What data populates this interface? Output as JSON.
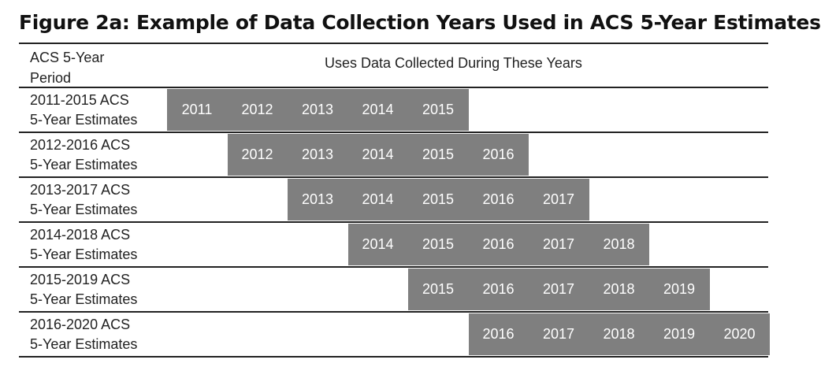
{
  "title": "Figure 2a: Example of Data Collection Years Used in ACS 5-Year Estimates",
  "header": {
    "period_line1": "ACS 5-Year",
    "period_line2": "Period",
    "uses": "Uses Data Collected During These Years"
  },
  "columns": [
    "2011",
    "2012",
    "2013",
    "2014",
    "2015",
    "2016",
    "2017",
    "2018",
    "2019",
    "2020"
  ],
  "rows": [
    {
      "line1": "2011-2015 ACS",
      "line2": "5-Year Estimates",
      "years": [
        "2011",
        "2012",
        "2013",
        "2014",
        "2015"
      ]
    },
    {
      "line1": "2012-2016 ACS",
      "line2": "5-Year Estimates",
      "years": [
        "2012",
        "2013",
        "2014",
        "2015",
        "2016"
      ]
    },
    {
      "line1": "2013-2017 ACS",
      "line2": "5-Year Estimates",
      "years": [
        "2013",
        "2014",
        "2015",
        "2016",
        "2017"
      ]
    },
    {
      "line1": "2014-2018 ACS",
      "line2": "5-Year Estimates",
      "years": [
        "2014",
        "2015",
        "2016",
        "2017",
        "2018"
      ]
    },
    {
      "line1": "2015-2019 ACS",
      "line2": "5-Year Estimates",
      "years": [
        "2015",
        "2016",
        "2017",
        "2018",
        "2019"
      ]
    },
    {
      "line1": "2016-2020 ACS",
      "line2": "5-Year Estimates",
      "years": [
        "2016",
        "2017",
        "2018",
        "2019",
        "2020"
      ]
    }
  ],
  "colors": {
    "bar": "#7f7f7f",
    "bar_text": "#ffffff",
    "rule": "#222222"
  }
}
